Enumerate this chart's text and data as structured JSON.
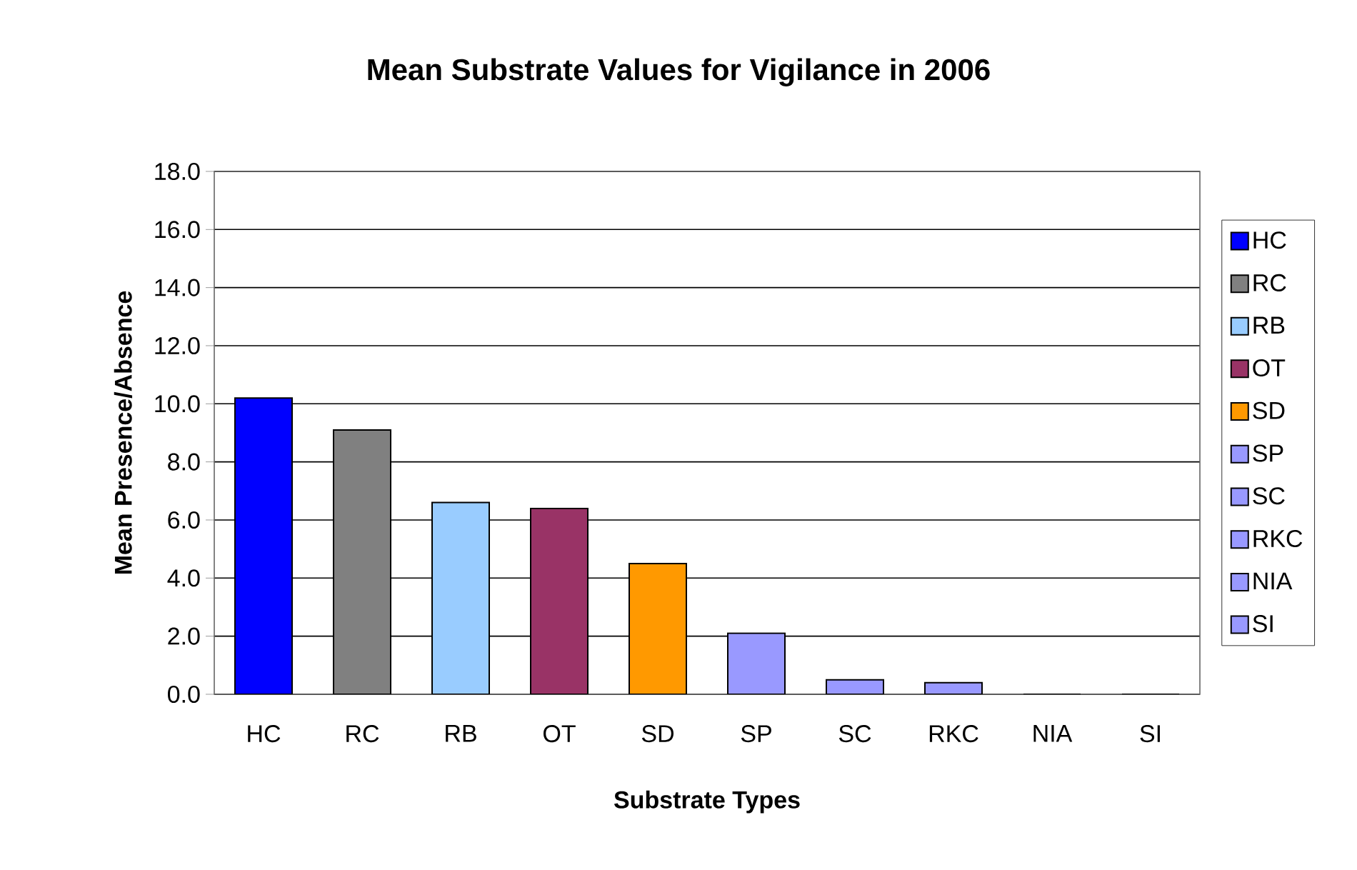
{
  "chart_data": {
    "type": "bar",
    "title": "Mean Substrate Values for Vigilance in 2006",
    "xlabel": "Substrate Types",
    "ylabel": "Mean Presence/Absence",
    "categories": [
      "HC",
      "RC",
      "RB",
      "OT",
      "SD",
      "SP",
      "SC",
      "RKC",
      "NIA",
      "SI"
    ],
    "stacked": true,
    "series": [
      {
        "name": "HC",
        "color": "#0000ff",
        "values": [
          10.2,
          null,
          null,
          null,
          null,
          null,
          null,
          null,
          null,
          null
        ]
      },
      {
        "name": "RC",
        "color": "#808080",
        "values": [
          null,
          9.1,
          null,
          null,
          null,
          null,
          null,
          null,
          null,
          null
        ]
      },
      {
        "name": "RB",
        "color": "#99ccff",
        "values": [
          null,
          null,
          6.6,
          null,
          null,
          null,
          null,
          null,
          null,
          null
        ]
      },
      {
        "name": "OT",
        "color": "#993366",
        "values": [
          null,
          null,
          null,
          6.4,
          null,
          null,
          null,
          null,
          null,
          null
        ]
      },
      {
        "name": "SD",
        "color": "#ff9900",
        "values": [
          null,
          null,
          null,
          null,
          4.5,
          null,
          null,
          null,
          null,
          null
        ]
      },
      {
        "name": "SP",
        "color": "#9999ff",
        "values": [
          null,
          null,
          null,
          null,
          null,
          2.1,
          null,
          null,
          null,
          null
        ]
      },
      {
        "name": "SC",
        "color": "#9999ff",
        "values": [
          null,
          null,
          null,
          null,
          null,
          null,
          0.5,
          null,
          null,
          null
        ]
      },
      {
        "name": "RKC",
        "color": "#9999ff",
        "values": [
          null,
          null,
          null,
          null,
          null,
          null,
          null,
          0.4,
          null,
          null
        ]
      },
      {
        "name": "NIA",
        "color": "#9999ff",
        "values": [
          null,
          null,
          null,
          null,
          null,
          null,
          null,
          null,
          0,
          null
        ]
      },
      {
        "name": "SI",
        "color": "#9999ff",
        "values": [
          null,
          null,
          null,
          null,
          null,
          null,
          null,
          null,
          null,
          0
        ]
      }
    ],
    "ylim": [
      0,
      18
    ],
    "yticks": [
      {
        "value": 0,
        "label": "0.0"
      },
      {
        "value": 2,
        "label": "2.0"
      },
      {
        "value": 4,
        "label": "4.0"
      },
      {
        "value": 6,
        "label": "6.0"
      },
      {
        "value": 8,
        "label": "8.0"
      },
      {
        "value": 10,
        "label": "10.0"
      },
      {
        "value": 12,
        "label": "12.0"
      },
      {
        "value": 14,
        "label": "14.0"
      },
      {
        "value": 16,
        "label": "16.0"
      },
      {
        "value": 18,
        "label": "18.0"
      }
    ],
    "grid": "y",
    "legend": "right"
  }
}
